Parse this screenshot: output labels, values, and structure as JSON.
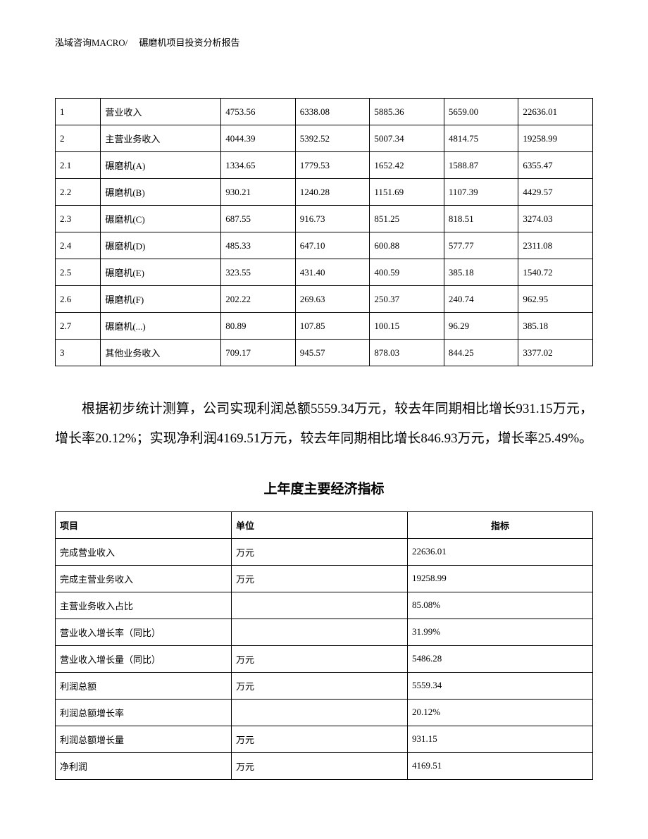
{
  "header": {
    "text": "泓域咨询MACRO/　 碾磨机项目投资分析报告"
  },
  "table1": {
    "rows": [
      {
        "idx": "1",
        "name": "营业收入",
        "v1": "4753.56",
        "v2": "6338.08",
        "v3": "5885.36",
        "v4": "5659.00",
        "v5": "22636.01"
      },
      {
        "idx": "2",
        "name": "主营业务收入",
        "v1": "4044.39",
        "v2": "5392.52",
        "v3": "5007.34",
        "v4": "4814.75",
        "v5": "19258.99"
      },
      {
        "idx": "2.1",
        "name": "碾磨机(A)",
        "v1": "1334.65",
        "v2": "1779.53",
        "v3": "1652.42",
        "v4": "1588.87",
        "v5": "6355.47"
      },
      {
        "idx": "2.2",
        "name": "碾磨机(B)",
        "v1": "930.21",
        "v2": "1240.28",
        "v3": "1151.69",
        "v4": "1107.39",
        "v5": "4429.57"
      },
      {
        "idx": "2.3",
        "name": "碾磨机(C)",
        "v1": "687.55",
        "v2": "916.73",
        "v3": "851.25",
        "v4": "818.51",
        "v5": "3274.03"
      },
      {
        "idx": "2.4",
        "name": "碾磨机(D)",
        "v1": "485.33",
        "v2": "647.10",
        "v3": "600.88",
        "v4": "577.77",
        "v5": "2311.08"
      },
      {
        "idx": "2.5",
        "name": "碾磨机(E)",
        "v1": "323.55",
        "v2": "431.40",
        "v3": "400.59",
        "v4": "385.18",
        "v5": "1540.72"
      },
      {
        "idx": "2.6",
        "name": "碾磨机(F)",
        "v1": "202.22",
        "v2": "269.63",
        "v3": "250.37",
        "v4": "240.74",
        "v5": "962.95"
      },
      {
        "idx": "2.7",
        "name": "碾磨机(...)",
        "v1": "80.89",
        "v2": "107.85",
        "v3": "100.15",
        "v4": "96.29",
        "v5": "385.18"
      },
      {
        "idx": "3",
        "name": "其他业务收入",
        "v1": "709.17",
        "v2": "945.57",
        "v3": "878.03",
        "v4": "844.25",
        "v5": "3377.02"
      }
    ]
  },
  "paragraph": {
    "text": "根据初步统计测算，公司实现利润总额5559.34万元，较去年同期相比增长931.15万元，增长率20.12%；实现净利润4169.51万元，较去年同期相比增长846.93万元，增长率25.49%。"
  },
  "table2": {
    "title": "上年度主要经济指标",
    "headers": {
      "item": "项目",
      "unit": "单位",
      "metric": "指标"
    },
    "rows": [
      {
        "item": "完成营业收入",
        "unit": "万元",
        "metric": "22636.01"
      },
      {
        "item": "完成主营业务收入",
        "unit": "万元",
        "metric": "19258.99"
      },
      {
        "item": "主营业务收入占比",
        "unit": "",
        "metric": "85.08%"
      },
      {
        "item": "营业收入增长率（同比）",
        "unit": "",
        "metric": "31.99%"
      },
      {
        "item": "营业收入增长量（同比）",
        "unit": "万元",
        "metric": "5486.28"
      },
      {
        "item": "利润总额",
        "unit": "万元",
        "metric": "5559.34"
      },
      {
        "item": "利润总额增长率",
        "unit": "",
        "metric": "20.12%"
      },
      {
        "item": "利润总额增长量",
        "unit": "万元",
        "metric": "931.15"
      },
      {
        "item": "净利润",
        "unit": "万元",
        "metric": "4169.51"
      }
    ]
  }
}
